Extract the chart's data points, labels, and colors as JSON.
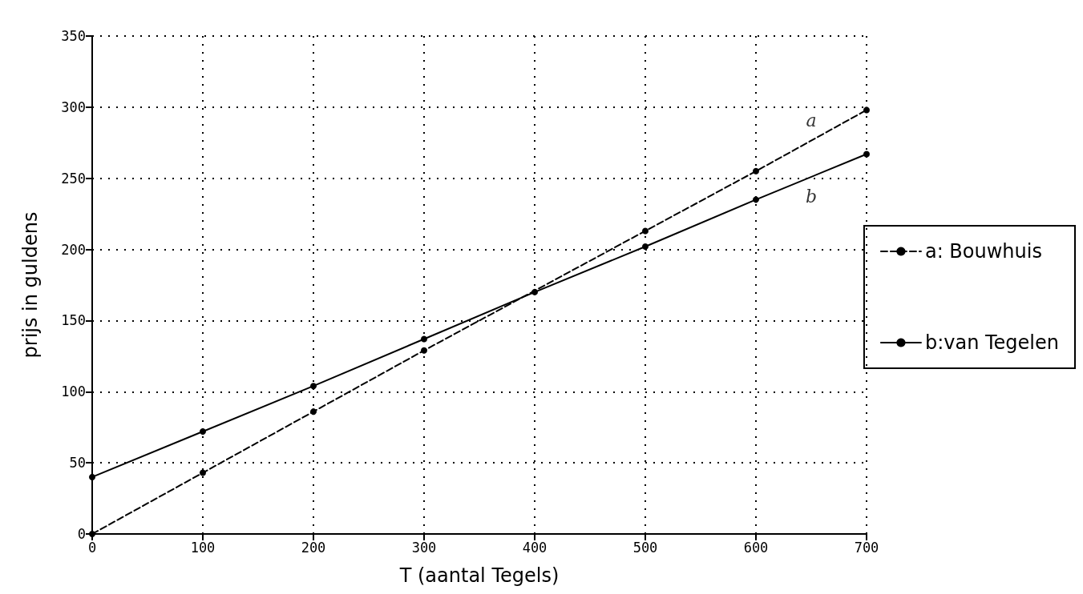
{
  "chart_data": {
    "type": "line",
    "xlabel": "T (aantal Tegels)",
    "ylabel": "prijs in guldens",
    "series": [
      {
        "name": "a: Bouwhuis",
        "color": "#000000",
        "line_style": "dashed",
        "x": [
          0,
          100,
          200,
          300,
          500,
          600,
          700
        ],
        "values": [
          0,
          43,
          86,
          129,
          213,
          255,
          298
        ]
      },
      {
        "name": "b:van Tegelen",
        "color": "#000000",
        "line_style": "solid",
        "x": [
          0,
          100,
          200,
          300,
          400,
          500,
          600,
          700
        ],
        "values": [
          40,
          72,
          104,
          137,
          170,
          202,
          235,
          267
        ]
      }
    ],
    "xlim": [
      0,
      700
    ],
    "xticks": [
      0,
      100,
      200,
      300,
      400,
      500,
      600,
      700
    ],
    "ylim": [
      0,
      350
    ],
    "yticks": [
      0,
      50,
      100,
      150,
      200,
      250,
      300,
      350
    ],
    "grid": true,
    "legend": "right",
    "marker": "circle",
    "annotations": [
      "a",
      "b"
    ]
  }
}
